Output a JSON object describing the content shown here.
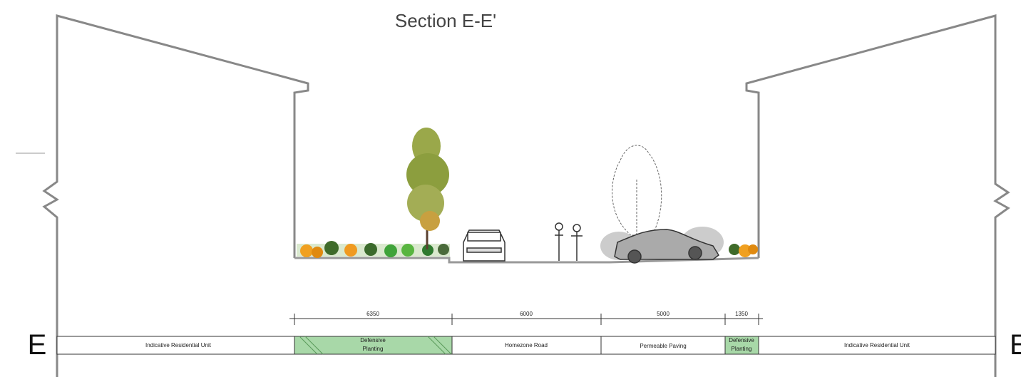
{
  "title": "Section E-E'",
  "markers": {
    "left": "E",
    "right": "E"
  },
  "dimensions": [
    6350,
    6000,
    5000,
    1350
  ],
  "zones": [
    {
      "label": [
        "Indicative Residential Unit"
      ]
    },
    {
      "label": [
        "Defensive",
        "Planting"
      ]
    },
    {
      "label": [
        "Homezone Road"
      ]
    },
    {
      "label": [
        "Permeable Paving"
      ]
    },
    {
      "label": [
        "Defensive",
        "Planting"
      ]
    },
    {
      "label": [
        "Indicative Residential Unit"
      ]
    }
  ]
}
